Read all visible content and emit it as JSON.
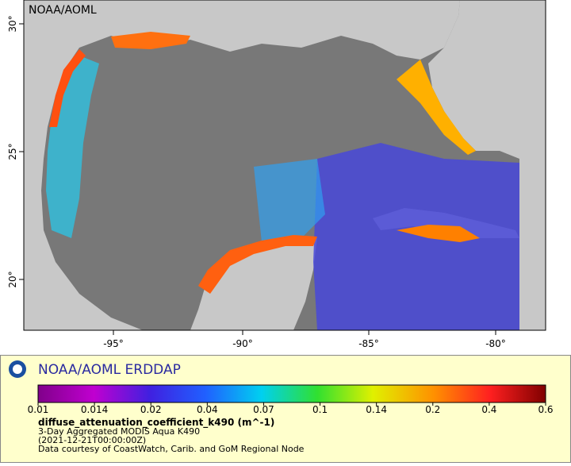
{
  "header": {
    "source": "NOAA/AOML"
  },
  "map": {
    "x_axis_labels": [
      "-95°",
      "-90°",
      "-85°",
      "-80°"
    ],
    "y_axis_labels": [
      "30°",
      "25°",
      "20°"
    ]
  },
  "legend": {
    "title": "NOAA/AOML ERDDAP",
    "colorbar_ticks": [
      0.01,
      0.014,
      0.02,
      0.04,
      0.07,
      0.1,
      0.14,
      0.2,
      0.4,
      0.6
    ],
    "variable": "diffuse_attenuation_coefficient_k490 (m^-1)",
    "dataset": "3-Day Aggregated MODIS Aqua K490",
    "time": "(2021-12-21T00:00:00Z)",
    "credit": "Data courtesy of CoastWatch, Carib. and GoM Regional Node"
  }
}
